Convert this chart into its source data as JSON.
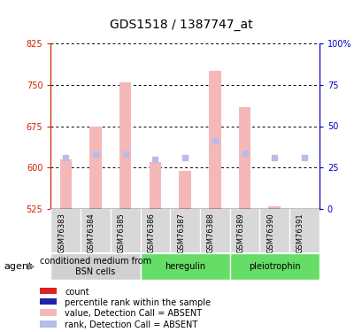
{
  "title": "GDS1518 / 1387747_at",
  "samples": [
    "GSM76383",
    "GSM76384",
    "GSM76385",
    "GSM76386",
    "GSM76387",
    "GSM76388",
    "GSM76389",
    "GSM76390",
    "GSM76391"
  ],
  "bar_values": [
    615,
    675,
    755,
    610,
    595,
    775,
    710,
    530,
    525
  ],
  "rank_values": [
    618,
    625,
    625,
    615,
    618,
    648,
    627,
    618,
    618
  ],
  "ylim_left": [
    525,
    825
  ],
  "yticks_left": [
    525,
    600,
    675,
    750,
    825
  ],
  "ylim_right": [
    0,
    100
  ],
  "yticks_right": [
    0,
    25,
    50,
    75,
    100
  ],
  "bar_color_absent": "#f4b8b8",
  "rank_color_absent": "#b8bce8",
  "groups": [
    {
      "label": "conditioned medium from\nBSN cells",
      "start": 0,
      "end": 3,
      "color": "#d0d0d0"
    },
    {
      "label": "heregulin",
      "start": 3,
      "end": 6,
      "color": "#66dd66"
    },
    {
      "label": "pleiotrophin",
      "start": 6,
      "end": 9,
      "color": "#66dd66"
    }
  ],
  "agent_label": "agent",
  "legend_items": [
    {
      "color": "#dd2222",
      "label": "count"
    },
    {
      "color": "#2222aa",
      "label": "percentile rank within the sample"
    },
    {
      "color": "#f4b8b8",
      "label": "value, Detection Call = ABSENT"
    },
    {
      "color": "#b8bce8",
      "label": "rank, Detection Call = ABSENT"
    }
  ],
  "ylabel_left_color": "#cc2200",
  "ylabel_right_color": "#0000cc",
  "title_fontsize": 10,
  "tick_fontsize": 7,
  "sample_fontsize": 6,
  "group_fontsize": 7,
  "legend_fontsize": 7
}
